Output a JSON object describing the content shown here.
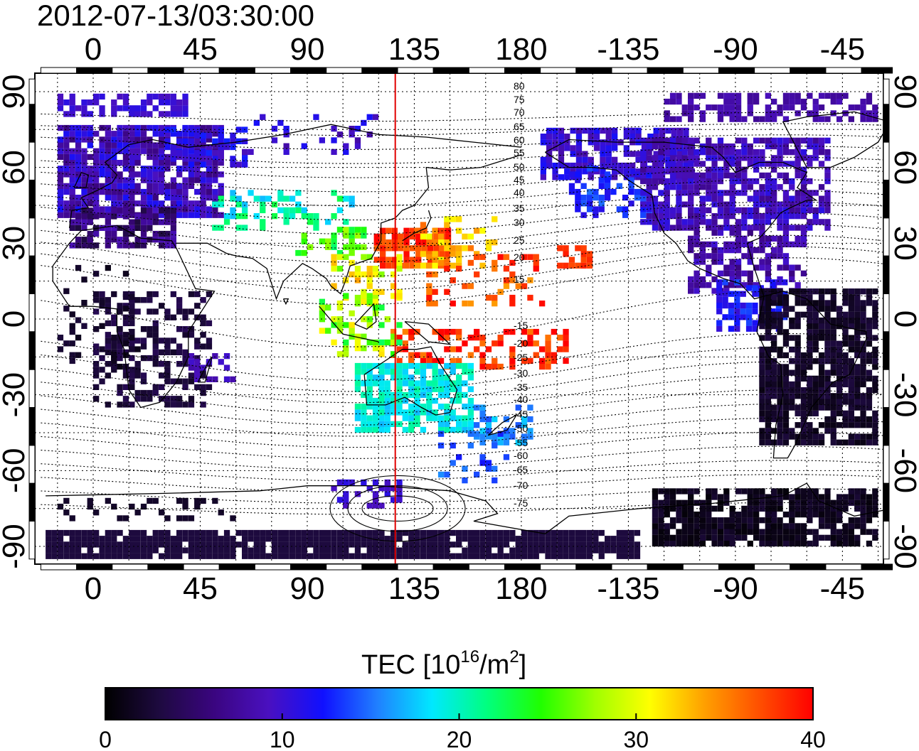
{
  "title": "2012-07-13/03:30:00",
  "map": {
    "lon_range": [
      -22,
      336
    ],
    "lat_range": [
      -95,
      95
    ],
    "top_lon_ticks": [
      "0",
      "45",
      "90",
      "135",
      "180",
      "-135",
      "-90",
      "-45"
    ],
    "bottom_lon_ticks": [
      "0",
      "45",
      "90",
      "135",
      "180",
      "-135",
      "-90",
      "-45"
    ],
    "left_lat_ticks": [
      "90",
      "60",
      "30",
      "0",
      "-30",
      "-60",
      "-90"
    ],
    "right_lat_ticks": [
      "90",
      "60",
      "30",
      "0",
      "-30",
      "-60",
      "-90"
    ],
    "grid": "dotted, every 15 degrees",
    "meridian_marker": {
      "lon": 127,
      "color": "#e00000"
    },
    "magnetic_latitude_labels": [
      "80",
      "75",
      "70",
      "65",
      "60",
      "55",
      "50",
      "45",
      "40",
      "35",
      "30",
      "25",
      "20",
      "15",
      "-15",
      "-20",
      "-25",
      "-30",
      "-35",
      "-40",
      "-45",
      "-50",
      "-55",
      "-60",
      "-65",
      "-70",
      "-75"
    ]
  },
  "colorbar": {
    "title": "TEC  [10",
    "title_sup": "16",
    "title_mid": "/m",
    "title_sup2": "2",
    "title_end": "]",
    "min": 0,
    "max": 40,
    "ticks": [
      "0",
      "10",
      "20",
      "30",
      "40"
    ],
    "stops": [
      "#000000",
      "#1e0a40",
      "#3a0580",
      "#4a10c0",
      "#1010ff",
      "#2080ff",
      "#00e8ff",
      "#00ff80",
      "#20ff00",
      "#a0ff00",
      "#ffff00",
      "#ffa000",
      "#ff5000",
      "#ff0000"
    ]
  },
  "tec_regions": [
    {
      "name": "Europe",
      "value": 9,
      "coverage": "dense"
    },
    {
      "name": "East Asia",
      "value": 37,
      "coverage": "dense"
    },
    {
      "name": "Southeast Asia",
      "value": 30,
      "coverage": "sparse"
    },
    {
      "name": "Western Pacific",
      "value": 38,
      "coverage": "sparse"
    },
    {
      "name": "Australia",
      "value": 18,
      "coverage": "dense"
    },
    {
      "name": "North America",
      "value": 10,
      "coverage": "dense"
    },
    {
      "name": "South America",
      "value": 2,
      "coverage": "dense"
    },
    {
      "name": "Africa",
      "value": 3,
      "coverage": "sparse"
    },
    {
      "name": "Antarctica",
      "value": 3,
      "coverage": "dense"
    }
  ]
}
